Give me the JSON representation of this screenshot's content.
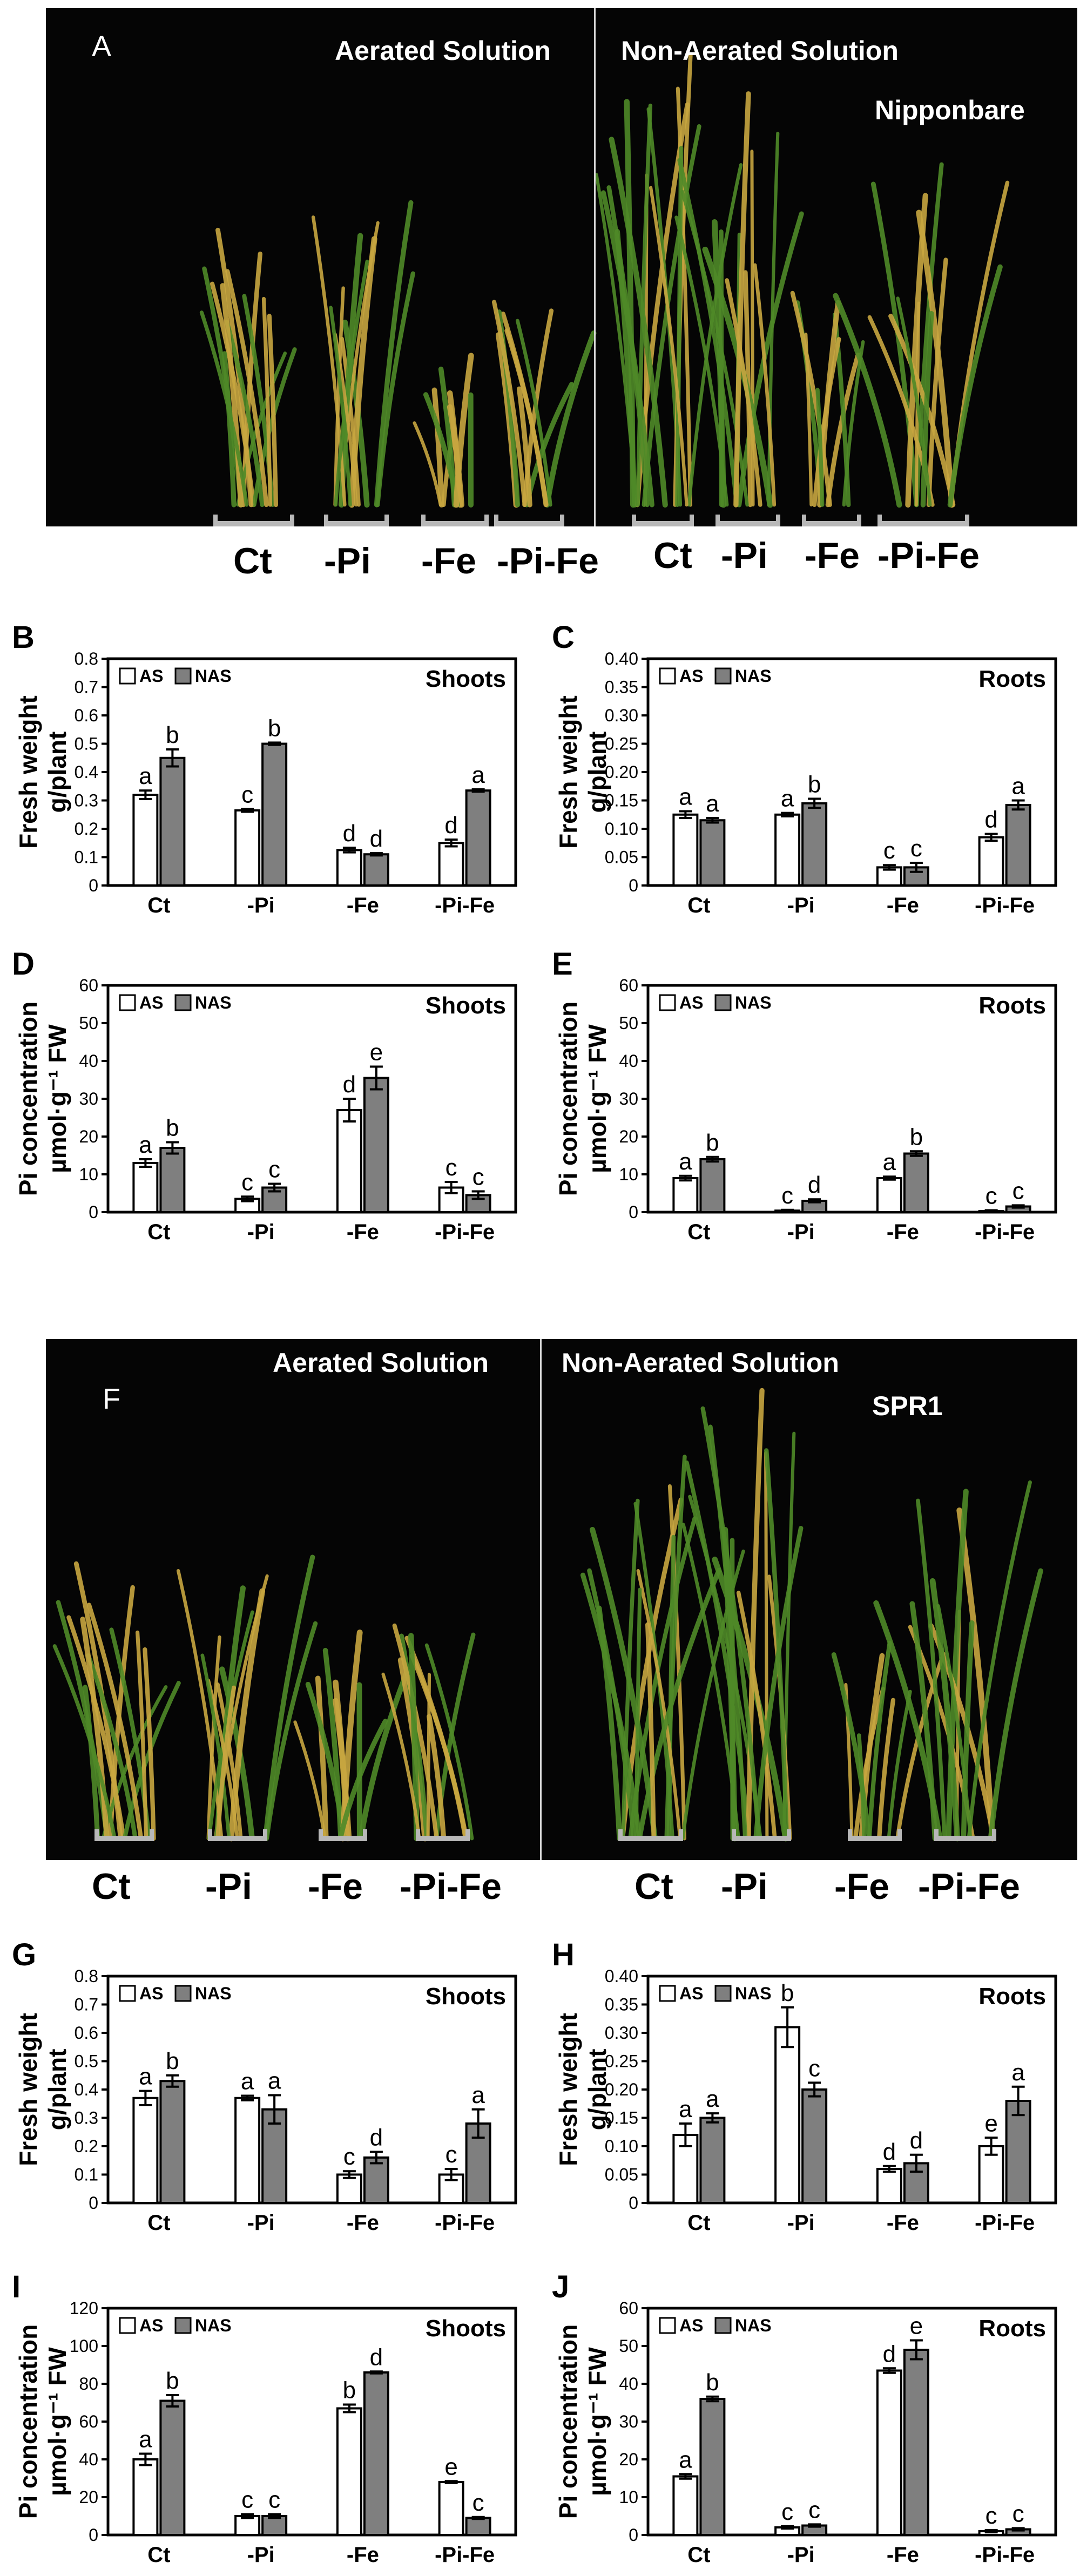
{
  "panel_a": {
    "letter": "A",
    "left_label": "Aerated Solution",
    "right_label": "Non-Aerated Solution",
    "cultivar": "Nipponbare",
    "treatments": [
      "Ct",
      "-Pi",
      "-Fe",
      "-Pi-Fe",
      "Ct",
      "-Pi",
      "-Fe",
      "-Pi-Fe"
    ]
  },
  "panel_f": {
    "letter": "F",
    "left_label": "Aerated Solution",
    "right_label": "Non-Aerated Solution",
    "cultivar": "SPR1",
    "treatments": [
      "Ct",
      "-Pi",
      "-Fe",
      "-Pi-Fe",
      "Ct",
      "-Pi",
      "-Fe",
      "-Pi-Fe"
    ]
  },
  "colors": {
    "as_bar": "#ffffff",
    "nas_bar": "#7f7f7f",
    "photo_bg": "#050505",
    "plant_green": "#4f8a28",
    "plant_yellow": "#c8a640"
  },
  "chart_data": [
    {
      "id": "B",
      "type": "bar",
      "tissue": "Shoots",
      "ylabel": [
        "Fresh weight",
        "g/plant"
      ],
      "categories": [
        "Ct",
        "-Pi",
        "-Fe",
        "-Pi-Fe"
      ],
      "ylim": [
        0,
        0.8
      ],
      "yticks": [
        "0",
        "0.1",
        "0.2",
        "0.3",
        "0.4",
        "0.5",
        "0.6",
        "0.7",
        "0.8"
      ],
      "legend": [
        "AS",
        "NAS"
      ],
      "series": [
        {
          "name": "AS",
          "values": [
            0.32,
            0.265,
            0.125,
            0.15
          ],
          "errors": [
            0.015,
            0.005,
            0.008,
            0.012
          ],
          "letters": [
            "a",
            "c",
            "d",
            "d"
          ]
        },
        {
          "name": "NAS",
          "values": [
            0.45,
            0.5,
            0.11,
            0.335
          ],
          "errors": [
            0.03,
            0.004,
            0.004,
            0.004
          ],
          "letters": [
            "b",
            "b",
            "d",
            "a"
          ]
        }
      ]
    },
    {
      "id": "C",
      "type": "bar",
      "tissue": "Roots",
      "ylabel": [
        "Fresh weight",
        "g/plant"
      ],
      "categories": [
        "Ct",
        "-Pi",
        "-Fe",
        "-Pi-Fe"
      ],
      "ylim": [
        0,
        0.4
      ],
      "yticks": [
        "0",
        "0.05",
        "0.10",
        "0.15",
        "0.20",
        "0.25",
        "0.30",
        "0.35",
        "0.40"
      ],
      "legend": [
        "AS",
        "NAS"
      ],
      "series": [
        {
          "name": "AS",
          "values": [
            0.125,
            0.125,
            0.032,
            0.085
          ],
          "errors": [
            0.006,
            0.003,
            0.004,
            0.006
          ],
          "letters": [
            "a",
            "a",
            "c",
            "d"
          ]
        },
        {
          "name": "NAS",
          "values": [
            0.115,
            0.145,
            0.032,
            0.142
          ],
          "errors": [
            0.004,
            0.008,
            0.008,
            0.008
          ],
          "letters": [
            "a",
            "b",
            "c",
            "a"
          ]
        }
      ]
    },
    {
      "id": "D",
      "type": "bar",
      "tissue": "Shoots",
      "ylabel": [
        "Pi concentration",
        "µmol·g⁻¹ FW"
      ],
      "categories": [
        "Ct",
        "-Pi",
        "-Fe",
        "-Pi-Fe"
      ],
      "ylim": [
        0,
        60
      ],
      "yticks": [
        "0",
        "10",
        "20",
        "30",
        "40",
        "50",
        "60"
      ],
      "legend": [
        "AS",
        "NAS"
      ],
      "series": [
        {
          "name": "AS",
          "values": [
            13,
            3.5,
            27,
            6.5
          ],
          "errors": [
            1,
            0.6,
            3,
            1.5
          ],
          "letters": [
            "a",
            "c",
            "d",
            "c"
          ]
        },
        {
          "name": "NAS",
          "values": [
            17,
            6.5,
            35.5,
            4.5
          ],
          "errors": [
            1.5,
            1,
            3,
            1
          ],
          "letters": [
            "b",
            "c",
            "e",
            "c"
          ]
        }
      ]
    },
    {
      "id": "E",
      "type": "bar",
      "tissue": "Roots",
      "ylabel": [
        "Pi concentration",
        "µmol·g⁻¹ FW"
      ],
      "categories": [
        "Ct",
        "-Pi",
        "-Fe",
        "-Pi-Fe"
      ],
      "ylim": [
        0,
        60
      ],
      "yticks": [
        "0",
        "10",
        "20",
        "30",
        "40",
        "50",
        "60"
      ],
      "legend": [
        "AS",
        "NAS"
      ],
      "series": [
        {
          "name": "AS",
          "values": [
            9,
            0.4,
            9,
            0.3
          ],
          "errors": [
            0.6,
            0.2,
            0.4,
            0.2
          ],
          "letters": [
            "a",
            "c",
            "a",
            "c"
          ]
        },
        {
          "name": "NAS",
          "values": [
            14,
            3,
            15.5,
            1.5
          ],
          "errors": [
            0.6,
            0.4,
            0.6,
            0.3
          ],
          "letters": [
            "b",
            "d",
            "b",
            "c"
          ]
        }
      ]
    },
    {
      "id": "G",
      "type": "bar",
      "tissue": "Shoots",
      "ylabel": [
        "Fresh weight",
        "g/plant"
      ],
      "categories": [
        "Ct",
        "-Pi",
        "-Fe",
        "-Pi-Fe"
      ],
      "ylim": [
        0,
        0.8
      ],
      "yticks": [
        "0",
        "0.1",
        "0.2",
        "0.3",
        "0.4",
        "0.5",
        "0.6",
        "0.7",
        "0.8"
      ],
      "legend": [
        "AS",
        "NAS"
      ],
      "series": [
        {
          "name": "AS",
          "values": [
            0.37,
            0.37,
            0.1,
            0.1
          ],
          "errors": [
            0.025,
            0.008,
            0.012,
            0.02
          ],
          "letters": [
            "a",
            "a",
            "c",
            "c"
          ]
        },
        {
          "name": "NAS",
          "values": [
            0.43,
            0.33,
            0.16,
            0.28
          ],
          "errors": [
            0.02,
            0.05,
            0.02,
            0.05
          ],
          "letters": [
            "b",
            "a",
            "d",
            "a"
          ]
        }
      ]
    },
    {
      "id": "H",
      "type": "bar",
      "tissue": "Roots",
      "ylabel": [
        "Fresh weight",
        "g/plant"
      ],
      "categories": [
        "Ct",
        "-Pi",
        "-Fe",
        "-Pi-Fe"
      ],
      "ylim": [
        0,
        0.4
      ],
      "yticks": [
        "0",
        "0.05",
        "0.10",
        "0.15",
        "0.20",
        "0.25",
        "0.30",
        "0.35",
        "0.40"
      ],
      "legend": [
        "AS",
        "NAS"
      ],
      "series": [
        {
          "name": "AS",
          "values": [
            0.12,
            0.31,
            0.06,
            0.1
          ],
          "errors": [
            0.02,
            0.035,
            0.005,
            0.015
          ],
          "letters": [
            "a",
            "b",
            "d",
            "e"
          ]
        },
        {
          "name": "NAS",
          "values": [
            0.15,
            0.2,
            0.07,
            0.18
          ],
          "errors": [
            0.008,
            0.012,
            0.015,
            0.025
          ],
          "letters": [
            "a",
            "c",
            "d",
            "a"
          ]
        }
      ]
    },
    {
      "id": "I",
      "type": "bar",
      "tissue": "Shoots",
      "ylabel": [
        "Pi concentration",
        "µmol·g⁻¹ FW"
      ],
      "categories": [
        "Ct",
        "-Pi",
        "-Fe",
        "-Pi-Fe"
      ],
      "ylim": [
        0,
        120
      ],
      "yticks": [
        "0",
        "20",
        "40",
        "60",
        "80",
        "100",
        "120"
      ],
      "legend": [
        "AS",
        "NAS"
      ],
      "series": [
        {
          "name": "AS",
          "values": [
            40,
            10,
            67,
            28
          ],
          "errors": [
            3,
            1,
            2,
            0.5
          ],
          "letters": [
            "a",
            "c",
            "b",
            "e"
          ]
        },
        {
          "name": "NAS",
          "values": [
            71,
            10,
            86,
            9
          ],
          "errors": [
            3,
            1,
            0.5,
            0.5
          ],
          "letters": [
            "b",
            "c",
            "d",
            "c"
          ]
        }
      ]
    },
    {
      "id": "J",
      "type": "bar",
      "tissue": "Roots",
      "ylabel": [
        "Pi concentration",
        "µmol·g⁻¹ FW"
      ],
      "categories": [
        "Ct",
        "-Pi",
        "-Fe",
        "-Pi-Fe"
      ],
      "ylim": [
        0,
        60
      ],
      "yticks": [
        "0",
        "10",
        "20",
        "30",
        "40",
        "50",
        "60"
      ],
      "legend": [
        "AS",
        "NAS"
      ],
      "series": [
        {
          "name": "AS",
          "values": [
            15.5,
            2,
            43.5,
            1
          ],
          "errors": [
            0.6,
            0.3,
            0.6,
            0.3
          ],
          "letters": [
            "a",
            "c",
            "d",
            "c"
          ]
        },
        {
          "name": "NAS",
          "values": [
            36,
            2.5,
            49,
            1.5
          ],
          "errors": [
            0.6,
            0.3,
            2.5,
            0.3
          ],
          "letters": [
            "b",
            "c",
            "e",
            "c"
          ]
        }
      ]
    }
  ]
}
